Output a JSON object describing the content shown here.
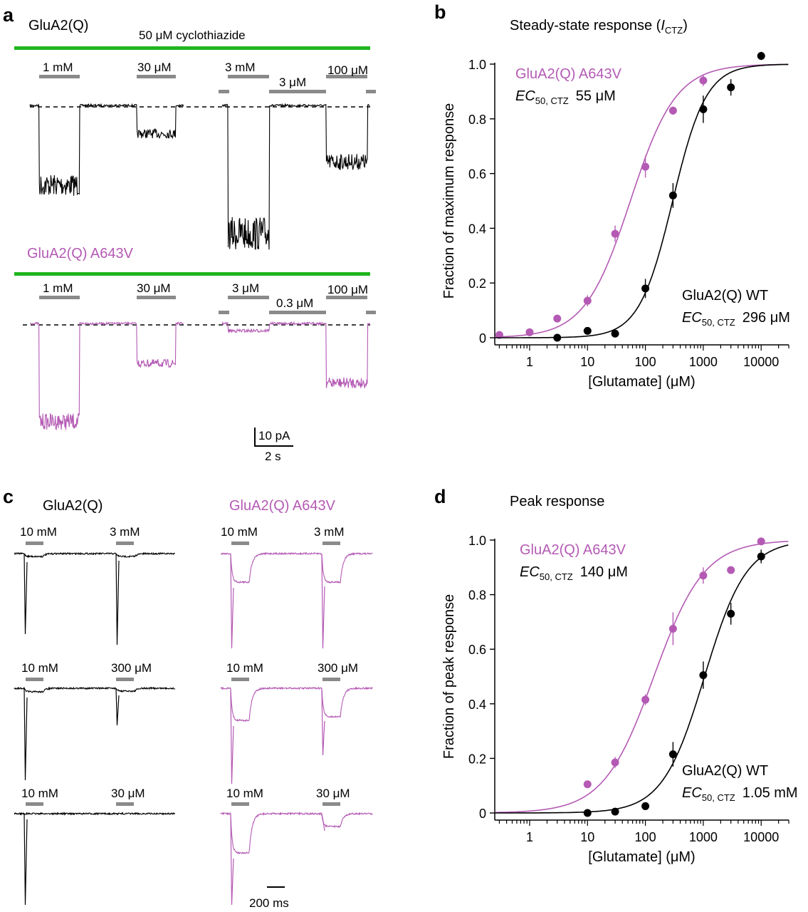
{
  "colors": {
    "wt": "#000000",
    "mut": "#b45ab4",
    "drug_bar": "#1fb51f",
    "app_bar": "#8a8a8a"
  },
  "panel_a": {
    "label": "a",
    "drug": "50 μM cyclothiazide",
    "trace1_name": "GluA2(Q)",
    "trace2_name": "GluA2(Q) A643V",
    "trace1_apps": [
      "1 mM",
      "30 μM",
      "3 mM",
      "3 μM",
      "100 μM"
    ],
    "trace2_apps": [
      "1 mM",
      "30 μM",
      "3 μM",
      "0.3 μM",
      "100 μM"
    ],
    "trace1_levels": [
      0.62,
      0.22,
      1.0,
      0.0,
      0.44
    ],
    "trace2_levels": [
      0.81,
      0.33,
      0.06,
      0.0,
      0.49
    ],
    "scale_y": "10 pA",
    "scale_x": "2 s"
  },
  "panel_c": {
    "label": "c",
    "col1_name": "GluA2(Q)",
    "col2_name": "GluA2(Q) A643V",
    "rows": [
      {
        "a1": "10 mM",
        "a2": "3 mM"
      },
      {
        "a1": "10 mM",
        "a2": "300 μM"
      },
      {
        "a1": "10 mM",
        "a2": "30 μM"
      }
    ],
    "scale_x": "200 ms"
  },
  "panel_b": {
    "label": "b",
    "title_main": "Steady-state response (",
    "title_italic": "I",
    "title_sub": "CTZ",
    "title_close": ")",
    "mut_name": "GluA2(Q) A643V",
    "mut_ec_label": "EC",
    "mut_ec_sub": "50, CTZ",
    "mut_ec_value": "55 μM",
    "wt_name": "GluA2(Q) WT",
    "wt_ec_label": "EC",
    "wt_ec_sub": "50, CTZ",
    "wt_ec_value": "296 μM"
  },
  "panel_d": {
    "label": "d",
    "title": "Peak response",
    "mut_name": "GluA2(Q) A643V",
    "mut_ec_label": "EC",
    "mut_ec_sub": "50, CTZ",
    "mut_ec_value": "140 μM",
    "wt_name": "GluA2(Q) WT",
    "wt_ec_label": "EC",
    "wt_ec_sub": "50, CTZ",
    "wt_ec_value": "1.05 mM"
  },
  "chart_data": [
    {
      "type": "scatter",
      "panel": "b",
      "title": "Steady-state response (ICTZ)",
      "xlabel": "[Glutamate] (μM)",
      "ylabel": "Fraction of maximum response",
      "xscale": "log",
      "xlim": [
        0.25,
        30000
      ],
      "ylim": [
        0,
        1.0
      ],
      "xticks": [
        1,
        10,
        100,
        1000,
        10000
      ],
      "xtick_labels": [
        "1",
        "10",
        "100",
        "1000",
        "10000"
      ],
      "yticks": [
        0,
        0.2,
        0.4,
        0.6,
        0.8,
        1.0
      ],
      "ytick_labels": [
        "0",
        "0.2",
        "0.4",
        "0.6",
        "0.8",
        "1.0"
      ],
      "series": [
        {
          "name": "GluA2(Q) A643V",
          "color": "#b45ab4",
          "x": [
            0.3,
            1,
            3,
            10,
            30,
            100,
            300,
            1000
          ],
          "y": [
            0.01,
            0.02,
            0.07,
            0.135,
            0.38,
            0.625,
            0.83,
            0.94
          ],
          "err": [
            0.01,
            0.01,
            0.01,
            0.02,
            0.03,
            0.04,
            0.015,
            0.02
          ],
          "ec50": 55,
          "hill": 1.1
        },
        {
          "name": "GluA2(Q) WT",
          "color": "#000000",
          "x": [
            3,
            10,
            30,
            100,
            300,
            1000,
            3000,
            10000
          ],
          "y": [
            0.0,
            0.025,
            0.015,
            0.18,
            0.52,
            0.835,
            0.915,
            1.03
          ],
          "err": [
            0.005,
            0.01,
            0.005,
            0.035,
            0.045,
            0.05,
            0.03,
            0.015
          ],
          "ec50": 296,
          "hill": 1.5
        }
      ]
    },
    {
      "type": "scatter",
      "panel": "d",
      "title": "Peak response",
      "xlabel": "[Glutamate] (μM)",
      "ylabel": "Fraction of peak response",
      "xscale": "log",
      "xlim": [
        0.25,
        30000
      ],
      "ylim": [
        0,
        1.0
      ],
      "xticks": [
        1,
        10,
        100,
        1000,
        10000
      ],
      "xtick_labels": [
        "1",
        "10",
        "100",
        "1000",
        "10000"
      ],
      "yticks": [
        0,
        0.2,
        0.4,
        0.6,
        0.8,
        1.0
      ],
      "ytick_labels": [
        "0",
        "0.2",
        "0.4",
        "0.6",
        "0.8",
        "1.0"
      ],
      "series": [
        {
          "name": "GluA2(Q) A643V",
          "color": "#b45ab4",
          "x": [
            10,
            30,
            100,
            300,
            1000,
            3000,
            10000
          ],
          "y": [
            0.105,
            0.185,
            0.415,
            0.675,
            0.87,
            0.89,
            0.995
          ],
          "err": [
            0.01,
            0.02,
            0.02,
            0.06,
            0.03,
            0.01,
            0.01
          ],
          "ec50": 140,
          "hill": 1.0
        },
        {
          "name": "GluA2(Q) WT",
          "color": "#000000",
          "x": [
            10,
            30,
            100,
            300,
            1000,
            3000,
            10000
          ],
          "y": [
            0.0,
            0.005,
            0.025,
            0.215,
            0.505,
            0.73,
            0.94
          ],
          "err": [
            0.005,
            0.005,
            0.005,
            0.045,
            0.05,
            0.04,
            0.025
          ],
          "ec50": 1050,
          "hill": 1.2
        }
      ]
    }
  ]
}
